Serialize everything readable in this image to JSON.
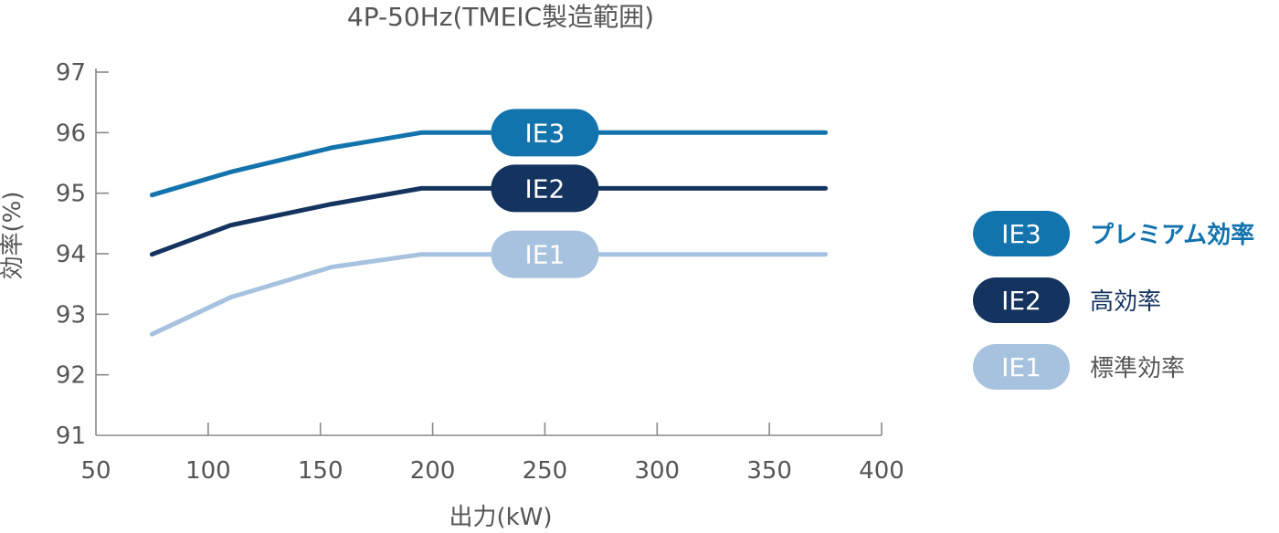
{
  "colors": {
    "axis": "#888888",
    "text": "#555555",
    "ie3": "#1373ad",
    "ie2": "#14335f",
    "ie1": "#a6c2de"
  },
  "chart_data": {
    "type": "line",
    "title": "4P-50Hz(TMEIC製造範囲)",
    "xlabel": "出力(kW)",
    "ylabel": "効率(%)",
    "xlim": [
      50,
      400
    ],
    "ylim": [
      91,
      97
    ],
    "xticks": [
      50,
      100,
      150,
      200,
      250,
      300,
      350,
      400
    ],
    "yticks": [
      91,
      92,
      93,
      94,
      95,
      96,
      97
    ],
    "grid": false,
    "legend_position": "right",
    "series": [
      {
        "name": "IE3",
        "legend_label": "プレミアム効率",
        "color_key": "ie3",
        "badge_x": 250,
        "x": [
          75,
          110,
          155,
          195,
          375
        ],
        "y": [
          94.97,
          95.35,
          95.75,
          96.0,
          96.0
        ]
      },
      {
        "name": "IE2",
        "legend_label": "高効率",
        "color_key": "ie2",
        "badge_x": 250,
        "x": [
          75,
          110,
          155,
          195,
          375
        ],
        "y": [
          93.99,
          94.47,
          94.82,
          95.08,
          95.08
        ]
      },
      {
        "name": "IE1",
        "legend_label": "標準効率",
        "color_key": "ie1",
        "badge_x": 250,
        "x": [
          75,
          110,
          155,
          195,
          375
        ],
        "y": [
          92.67,
          93.28,
          93.78,
          93.99,
          93.99
        ]
      }
    ]
  }
}
